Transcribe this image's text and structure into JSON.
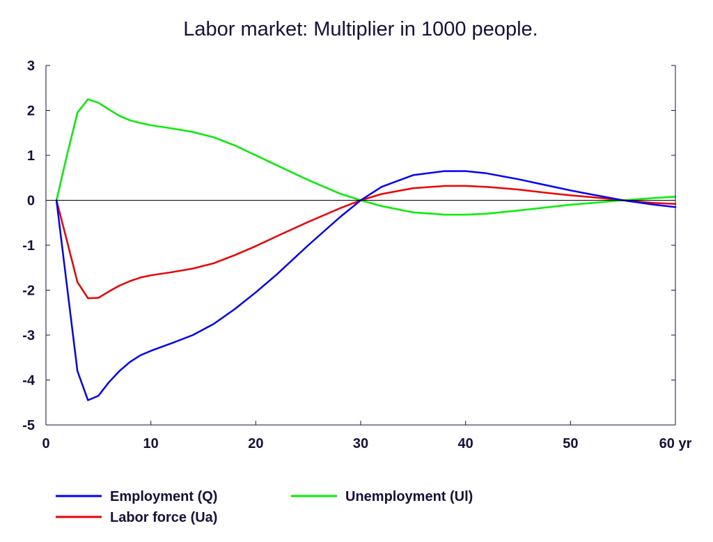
{
  "chart_data": {
    "type": "line",
    "title": "Labor market: Multiplier in 1000 people.",
    "x_unit": "yr",
    "xlim": [
      0,
      60
    ],
    "ylim": [
      -5,
      3
    ],
    "x_ticks": [
      0,
      10,
      20,
      30,
      40,
      50,
      60
    ],
    "y_ticks": [
      3,
      2,
      1,
      0,
      -1,
      -2,
      -3,
      -4,
      -5
    ],
    "grid": false,
    "zero_line": true,
    "legend_placement": "bottom",
    "series": [
      {
        "name": "Employment (Q)",
        "color": "#0000ff",
        "x": [
          1,
          2,
          3,
          4,
          5,
          6,
          7,
          8,
          9,
          10,
          12,
          14,
          16,
          18,
          20,
          22,
          25,
          28,
          30,
          32,
          35,
          38,
          40,
          42,
          45,
          48,
          50,
          52,
          55,
          58,
          60
        ],
        "y": [
          0,
          -1.9,
          -3.8,
          -4.45,
          -4.35,
          -4.05,
          -3.8,
          -3.6,
          -3.45,
          -3.35,
          -3.18,
          -3.0,
          -2.75,
          -2.42,
          -2.05,
          -1.65,
          -1.0,
          -0.38,
          0,
          0.3,
          0.56,
          0.65,
          0.65,
          0.6,
          0.47,
          0.32,
          0.22,
          0.13,
          0,
          -0.1,
          -0.15
        ]
      },
      {
        "name": "Unemployment (Ul)",
        "color": "#00ee00",
        "x": [
          1,
          2,
          3,
          4,
          5,
          6,
          7,
          8,
          9,
          10,
          12,
          14,
          16,
          18,
          20,
          22,
          25,
          28,
          30,
          32,
          35,
          38,
          40,
          42,
          45,
          48,
          50,
          52,
          55,
          58,
          60
        ],
        "y": [
          0,
          1.0,
          1.95,
          2.25,
          2.17,
          2.02,
          1.88,
          1.78,
          1.72,
          1.67,
          1.6,
          1.52,
          1.4,
          1.22,
          1.0,
          0.78,
          0.45,
          0.15,
          0,
          -0.13,
          -0.27,
          -0.32,
          -0.32,
          -0.3,
          -0.23,
          -0.15,
          -0.1,
          -0.06,
          0,
          0.05,
          0.08
        ]
      },
      {
        "name": "Labor force (Ua)",
        "color": "#ee0000",
        "x": [
          1,
          2,
          3,
          4,
          5,
          6,
          7,
          8,
          9,
          10,
          12,
          14,
          16,
          18,
          20,
          22,
          25,
          28,
          30,
          32,
          35,
          38,
          40,
          42,
          45,
          48,
          50,
          52,
          55,
          58,
          60
        ],
        "y": [
          0,
          -0.9,
          -1.82,
          -2.18,
          -2.17,
          -2.03,
          -1.9,
          -1.8,
          -1.72,
          -1.67,
          -1.6,
          -1.52,
          -1.4,
          -1.22,
          -1.02,
          -0.8,
          -0.48,
          -0.18,
          0,
          0.14,
          0.27,
          0.32,
          0.32,
          0.3,
          0.24,
          0.16,
          0.11,
          0.07,
          0,
          -0.06,
          -0.08
        ]
      }
    ]
  }
}
